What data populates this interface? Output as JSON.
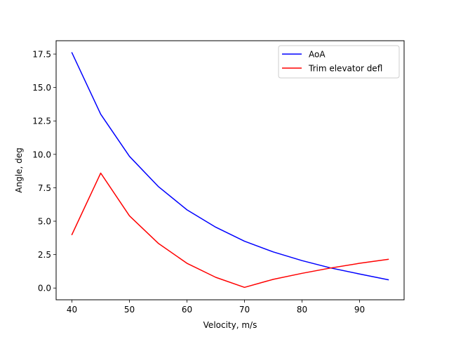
{
  "chart_data": {
    "type": "line",
    "title": "",
    "xlabel": "Velocity, m/s",
    "ylabel": "Angle, deg",
    "xlim": [
      37.25,
      97.75
    ],
    "ylim": [
      -0.88,
      18.5
    ],
    "xticks": [
      40,
      50,
      60,
      70,
      80,
      90
    ],
    "xtick_labels": [
      "40",
      "50",
      "60",
      "70",
      "80",
      "90"
    ],
    "yticks": [
      0,
      2.5,
      5,
      7.5,
      10,
      12.5,
      15,
      17.5
    ],
    "ytick_labels": [
      "0.0",
      "2.5",
      "5.0",
      "7.5",
      "10.0",
      "12.5",
      "15.0",
      "17.5"
    ],
    "grid": false,
    "legend_position": "top-right",
    "x": [
      40,
      45,
      50,
      55,
      60,
      65,
      70,
      75,
      80,
      85,
      90,
      95
    ],
    "series": [
      {
        "name": "AoA",
        "color": "#0000ff",
        "values": [
          17.6,
          13.0,
          9.85,
          7.6,
          5.85,
          4.55,
          3.5,
          2.7,
          2.05,
          1.5,
          1.05,
          0.62
        ]
      },
      {
        "name": "Trim elevator defl",
        "color": "#ff0000",
        "values": [
          4.0,
          8.6,
          5.4,
          3.35,
          1.85,
          0.8,
          0.05,
          0.65,
          1.1,
          1.5,
          1.85,
          2.15
        ]
      }
    ]
  }
}
